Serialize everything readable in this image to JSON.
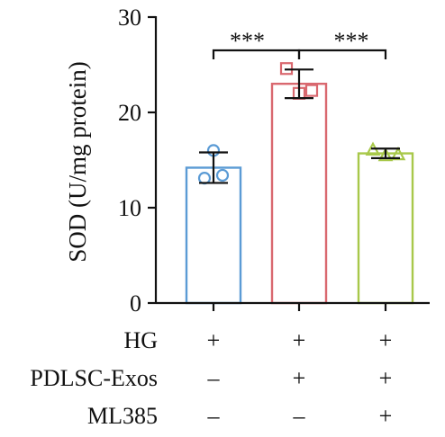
{
  "chart_data": {
    "type": "bar",
    "ylabel": "SOD (U/mg protein)",
    "ylim": [
      0,
      30
    ],
    "yticks": [
      0,
      10,
      20,
      30
    ],
    "grid": false,
    "series": [
      {
        "values": [
          14.2,
          23.0,
          15.7
        ],
        "error": [
          1.6,
          1.5,
          0.5
        ],
        "colors": [
          "#5b9bd5",
          "#d9686f",
          "#a8c84a"
        ],
        "markers": [
          "circle",
          "square",
          "triangle"
        ],
        "points": [
          [
            16.0,
            13.1,
            13.4
          ],
          [
            24.6,
            22.0,
            22.3
          ],
          [
            16.1,
            15.5,
            15.6
          ]
        ]
      }
    ],
    "significance": [
      {
        "from": 0,
        "to": 1,
        "label": "***"
      },
      {
        "from": 1,
        "to": 2,
        "label": "***"
      }
    ],
    "conditions": [
      {
        "label": "HG",
        "marks": [
          "+",
          "+",
          "+"
        ]
      },
      {
        "label": "PDLSC-Exos",
        "marks": [
          "–",
          "+",
          "+"
        ]
      },
      {
        "label": "ML385",
        "marks": [
          "–",
          "–",
          "+"
        ]
      }
    ]
  }
}
